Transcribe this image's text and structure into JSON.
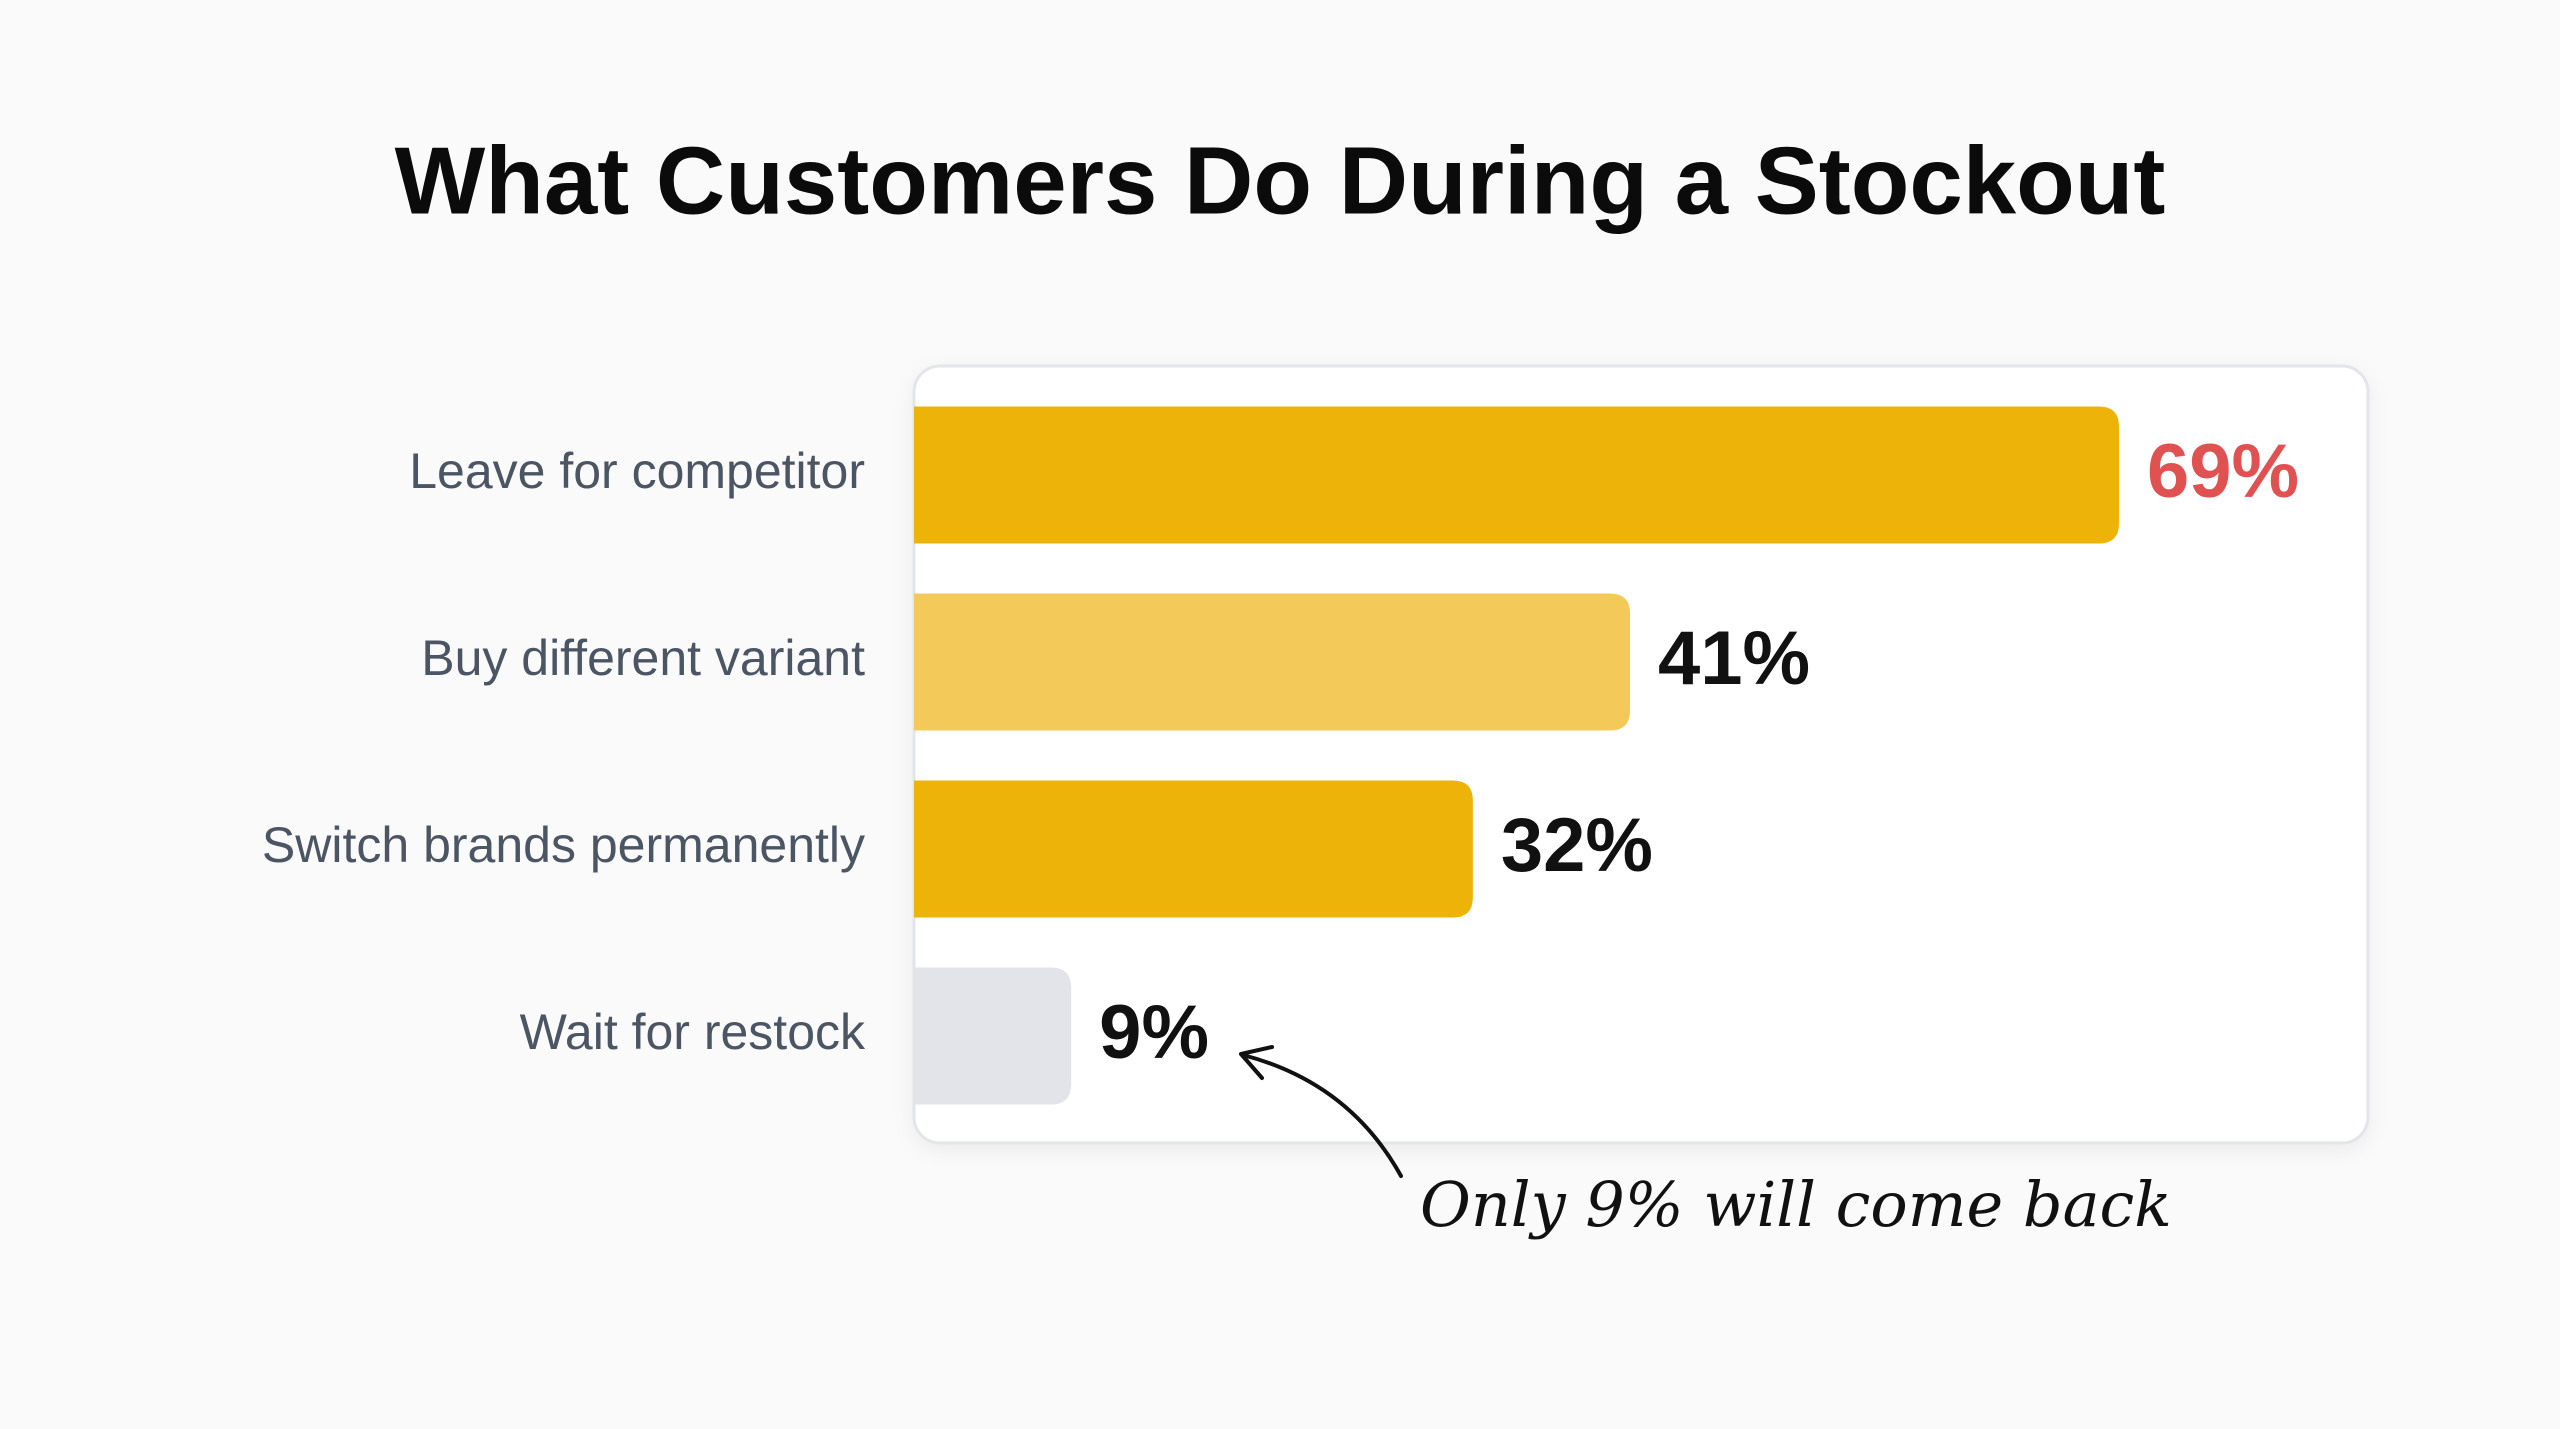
{
  "chart_data": {
    "type": "bar",
    "orientation": "horizontal",
    "title": "What Customers Do During a Stockout",
    "categories": [
      "Leave for competitor",
      "Buy different variant",
      "Switch brands permanently",
      "Wait for restock"
    ],
    "values": [
      69,
      41,
      32,
      9
    ],
    "value_labels": [
      "69%",
      "41%",
      "32%",
      "9%"
    ],
    "colors": [
      "#eeb308",
      "#f3c95a",
      "#eeb308",
      "#e2e4e9"
    ],
    "value_label_colors": [
      "#e05252",
      "#111111",
      "#111111",
      "#111111"
    ],
    "annotation": "Only 9% will come back"
  }
}
